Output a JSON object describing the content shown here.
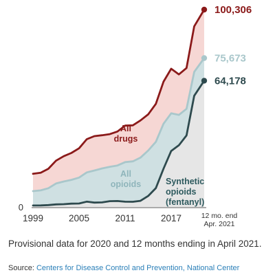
{
  "caption": "Provisional data for 2020 and 12 months ending in April 2021.",
  "source": {
    "label": "Source:",
    "text": "Centers for Disease Control and Prevention, National Center"
  },
  "colors": {
    "all_drugs_line": "#8b1a1a",
    "all_drugs_fill": "#f6d7d4",
    "all_opioids_line": "#a9c7cb",
    "all_opioids_fill": "#cfe0e2",
    "synthetic_line": "#2e4a4e",
    "synthetic_fill": "#e6e6e6",
    "synthetic_label": "#2e5a5e",
    "all_opioids_label": "#8fb5bb"
  },
  "chart_data": {
    "type": "area",
    "x_tick_labels": [
      "1999",
      "2005",
      "2011",
      "2017",
      "12 mo. end",
      "Apr. 2021"
    ],
    "x_ticks": [
      1999,
      2005,
      2011,
      2017
    ],
    "y_tick_labels": [
      "0"
    ],
    "ylim": [
      0,
      100306
    ],
    "x": [
      1999,
      2000,
      2001,
      2002,
      2003,
      2004,
      2005,
      2006,
      2007,
      2008,
      2009,
      2010,
      2011,
      2012,
      2013,
      2014,
      2015,
      2016,
      2017,
      2018,
      2019,
      2020,
      2021.3
    ],
    "series": [
      {
        "name": "All drugs",
        "label_lines": [
          "All",
          "drugs"
        ],
        "values": [
          16849,
          17415,
          19394,
          23518,
          25785,
          27424,
          29813,
          34425,
          36010,
          36450,
          37004,
          38329,
          41340,
          41502,
          43982,
          47055,
          52404,
          63632,
          70237,
          67367,
          70630,
          91799,
          100306
        ],
        "end_label": "100,306"
      },
      {
        "name": "All opioids",
        "label_lines": [
          "All",
          "opioids"
        ],
        "values": [
          8050,
          8407,
          9496,
          11920,
          12940,
          13756,
          14918,
          17545,
          18516,
          19582,
          20422,
          21089,
          22784,
          23166,
          25052,
          28647,
          33091,
          42249,
          47600,
          46802,
          49860,
          68630,
          75673
        ],
        "end_label": "75,673"
      },
      {
        "name": "Synthetic opioids (fentanyl)",
        "label_lines": [
          "Synthetic",
          "opioids",
          "(fentanyl)"
        ],
        "values": [
          730,
          782,
          957,
          1295,
          1400,
          1664,
          1742,
          2707,
          2213,
          2306,
          2946,
          3007,
          2666,
          2628,
          3105,
          5544,
          9580,
          19413,
          28466,
          31335,
          36359,
          56516,
          64178
        ],
        "end_label": "64,178"
      }
    ]
  }
}
